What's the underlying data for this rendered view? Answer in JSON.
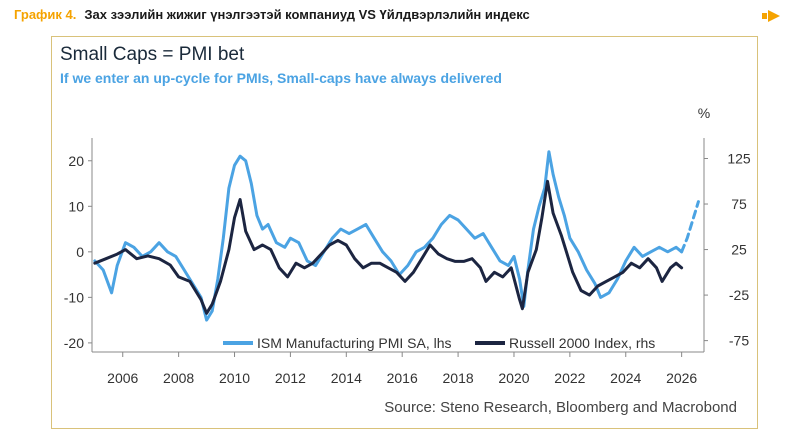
{
  "caption": {
    "number": "График 4.",
    "text": "Зах зээлийн жижиг үнэлгээтэй компаниуд VS Үйлдвэрлэлийн индекс"
  },
  "title": "Small Caps = PMI bet",
  "subtitle": "If we enter an up-cycle for PMIs, Small-caps have always delivered",
  "source": "Source: Steno Research, Bloomberg and Macrobond",
  "colors": {
    "pmi": "#4BA3E3",
    "russell": "#1C2541",
    "accent": "#F5A300",
    "frame": "#D9C27A"
  },
  "chart_data": {
    "type": "line",
    "title": "Small Caps = PMI bet",
    "subtitle": "If we enter an up-cycle for PMIs, Small-caps have always delivered",
    "x_range": [
      2004.9,
      2026.8
    ],
    "x_ticks": [
      2006,
      2008,
      2010,
      2012,
      2014,
      2016,
      2018,
      2020,
      2022,
      2024,
      2026
    ],
    "x_tick_labels": [
      "2006",
      "2008",
      "2010",
      "2012",
      "2014",
      "2016",
      "2018",
      "2020",
      "2022",
      "2024",
      "2026"
    ],
    "y_left": {
      "range": [
        -22,
        25
      ],
      "ticks": [
        20,
        10,
        0,
        -10,
        -20
      ],
      "tick_labels": [
        "20",
        "10",
        "0",
        "-10",
        "-20"
      ]
    },
    "y_right": {
      "range": [
        -87.5,
        147.5
      ],
      "unit": "%",
      "ticks": [
        125,
        75,
        25,
        -25,
        -75
      ],
      "tick_labels": [
        "125",
        "75",
        "25",
        "-25",
        "-75"
      ]
    },
    "legend_position": "bottom-right",
    "series": [
      {
        "name": "ISM Manufacturing PMI SA, lhs",
        "axis": "left",
        "style": "solid",
        "points": [
          [
            2005.0,
            -2
          ],
          [
            2005.3,
            -4
          ],
          [
            2005.6,
            -9
          ],
          [
            2005.8,
            -3
          ],
          [
            2006.1,
            2
          ],
          [
            2006.4,
            1
          ],
          [
            2006.7,
            -1
          ],
          [
            2007.0,
            0
          ],
          [
            2007.3,
            2
          ],
          [
            2007.6,
            0
          ],
          [
            2007.9,
            -1
          ],
          [
            2008.2,
            -4
          ],
          [
            2008.5,
            -7
          ],
          [
            2008.8,
            -10
          ],
          [
            2009.0,
            -15
          ],
          [
            2009.2,
            -13
          ],
          [
            2009.4,
            -6
          ],
          [
            2009.6,
            3
          ],
          [
            2009.8,
            14
          ],
          [
            2010.0,
            19
          ],
          [
            2010.2,
            21
          ],
          [
            2010.4,
            20
          ],
          [
            2010.6,
            15
          ],
          [
            2010.8,
            8
          ],
          [
            2011.0,
            5
          ],
          [
            2011.2,
            6
          ],
          [
            2011.5,
            2
          ],
          [
            2011.8,
            1
          ],
          [
            2012.0,
            3
          ],
          [
            2012.3,
            2
          ],
          [
            2012.6,
            -2
          ],
          [
            2012.9,
            -3
          ],
          [
            2013.2,
            0
          ],
          [
            2013.5,
            3
          ],
          [
            2013.8,
            5
          ],
          [
            2014.1,
            4
          ],
          [
            2014.4,
            5
          ],
          [
            2014.7,
            6
          ],
          [
            2015.0,
            3
          ],
          [
            2015.3,
            0
          ],
          [
            2015.6,
            -2
          ],
          [
            2015.9,
            -5
          ],
          [
            2016.2,
            -3
          ],
          [
            2016.5,
            0
          ],
          [
            2016.8,
            1
          ],
          [
            2017.1,
            3
          ],
          [
            2017.4,
            6
          ],
          [
            2017.7,
            8
          ],
          [
            2018.0,
            7
          ],
          [
            2018.3,
            5
          ],
          [
            2018.6,
            3
          ],
          [
            2018.9,
            4
          ],
          [
            2019.2,
            1
          ],
          [
            2019.5,
            -2
          ],
          [
            2019.8,
            -3
          ],
          [
            2020.0,
            -1
          ],
          [
            2020.2,
            -6
          ],
          [
            2020.35,
            -12
          ],
          [
            2020.5,
            -4
          ],
          [
            2020.7,
            5
          ],
          [
            2020.9,
            10
          ],
          [
            2021.1,
            14
          ],
          [
            2021.25,
            22
          ],
          [
            2021.4,
            17
          ],
          [
            2021.6,
            12
          ],
          [
            2021.8,
            8
          ],
          [
            2022.0,
            3
          ],
          [
            2022.3,
            0
          ],
          [
            2022.6,
            -4
          ],
          [
            2022.9,
            -7
          ],
          [
            2023.1,
            -10
          ],
          [
            2023.4,
            -9
          ],
          [
            2023.7,
            -6
          ],
          [
            2024.0,
            -2
          ],
          [
            2024.3,
            1
          ],
          [
            2024.6,
            -1
          ],
          [
            2024.9,
            0
          ],
          [
            2025.2,
            1
          ],
          [
            2025.5,
            0
          ],
          [
            2025.8,
            1
          ],
          [
            2026.0,
            0
          ]
        ]
      },
      {
        "name": "ISM Manufacturing PMI SA, lhs (projection)",
        "axis": "left",
        "style": "dashed",
        "points": [
          [
            2026.0,
            0
          ],
          [
            2026.2,
            3
          ],
          [
            2026.4,
            7
          ],
          [
            2026.6,
            11
          ]
        ]
      },
      {
        "name": "Russell 2000 Index, rhs",
        "axis": "right",
        "style": "solid",
        "points": [
          [
            2005.0,
            10
          ],
          [
            2005.4,
            15
          ],
          [
            2005.8,
            20
          ],
          [
            2006.1,
            25
          ],
          [
            2006.5,
            15
          ],
          [
            2006.9,
            18
          ],
          [
            2007.3,
            15
          ],
          [
            2007.7,
            8
          ],
          [
            2008.0,
            -5
          ],
          [
            2008.4,
            -10
          ],
          [
            2008.8,
            -30
          ],
          [
            2009.0,
            -45
          ],
          [
            2009.2,
            -35
          ],
          [
            2009.5,
            -10
          ],
          [
            2009.8,
            25
          ],
          [
            2010.0,
            60
          ],
          [
            2010.2,
            80
          ],
          [
            2010.4,
            45
          ],
          [
            2010.7,
            25
          ],
          [
            2011.0,
            30
          ],
          [
            2011.3,
            25
          ],
          [
            2011.6,
            5
          ],
          [
            2011.9,
            -5
          ],
          [
            2012.2,
            10
          ],
          [
            2012.5,
            5
          ],
          [
            2012.8,
            10
          ],
          [
            2013.1,
            20
          ],
          [
            2013.4,
            30
          ],
          [
            2013.7,
            35
          ],
          [
            2014.0,
            30
          ],
          [
            2014.3,
            15
          ],
          [
            2014.6,
            5
          ],
          [
            2014.9,
            10
          ],
          [
            2015.2,
            10
          ],
          [
            2015.5,
            5
          ],
          [
            2015.8,
            0
          ],
          [
            2016.1,
            -10
          ],
          [
            2016.4,
            0
          ],
          [
            2016.7,
            15
          ],
          [
            2017.0,
            30
          ],
          [
            2017.3,
            20
          ],
          [
            2017.6,
            15
          ],
          [
            2017.9,
            12
          ],
          [
            2018.2,
            12
          ],
          [
            2018.5,
            15
          ],
          [
            2018.8,
            5
          ],
          [
            2019.0,
            -10
          ],
          [
            2019.3,
            0
          ],
          [
            2019.6,
            -5
          ],
          [
            2019.9,
            5
          ],
          [
            2020.2,
            -30
          ],
          [
            2020.3,
            -40
          ],
          [
            2020.5,
            0
          ],
          [
            2020.8,
            25
          ],
          [
            2021.0,
            60
          ],
          [
            2021.2,
            100
          ],
          [
            2021.4,
            65
          ],
          [
            2021.7,
            40
          ],
          [
            2021.9,
            20
          ],
          [
            2022.1,
            0
          ],
          [
            2022.4,
            -20
          ],
          [
            2022.7,
            -25
          ],
          [
            2023.0,
            -15
          ],
          [
            2023.3,
            -10
          ],
          [
            2023.6,
            -5
          ],
          [
            2023.9,
            0
          ],
          [
            2024.2,
            10
          ],
          [
            2024.5,
            5
          ],
          [
            2024.8,
            15
          ],
          [
            2025.1,
            5
          ],
          [
            2025.3,
            -10
          ],
          [
            2025.6,
            5
          ],
          [
            2025.8,
            10
          ],
          [
            2026.0,
            5
          ]
        ]
      }
    ],
    "legend": [
      {
        "label": "ISM Manufacturing PMI SA, lhs"
      },
      {
        "label": "Russell 2000 Index, rhs"
      }
    ]
  }
}
